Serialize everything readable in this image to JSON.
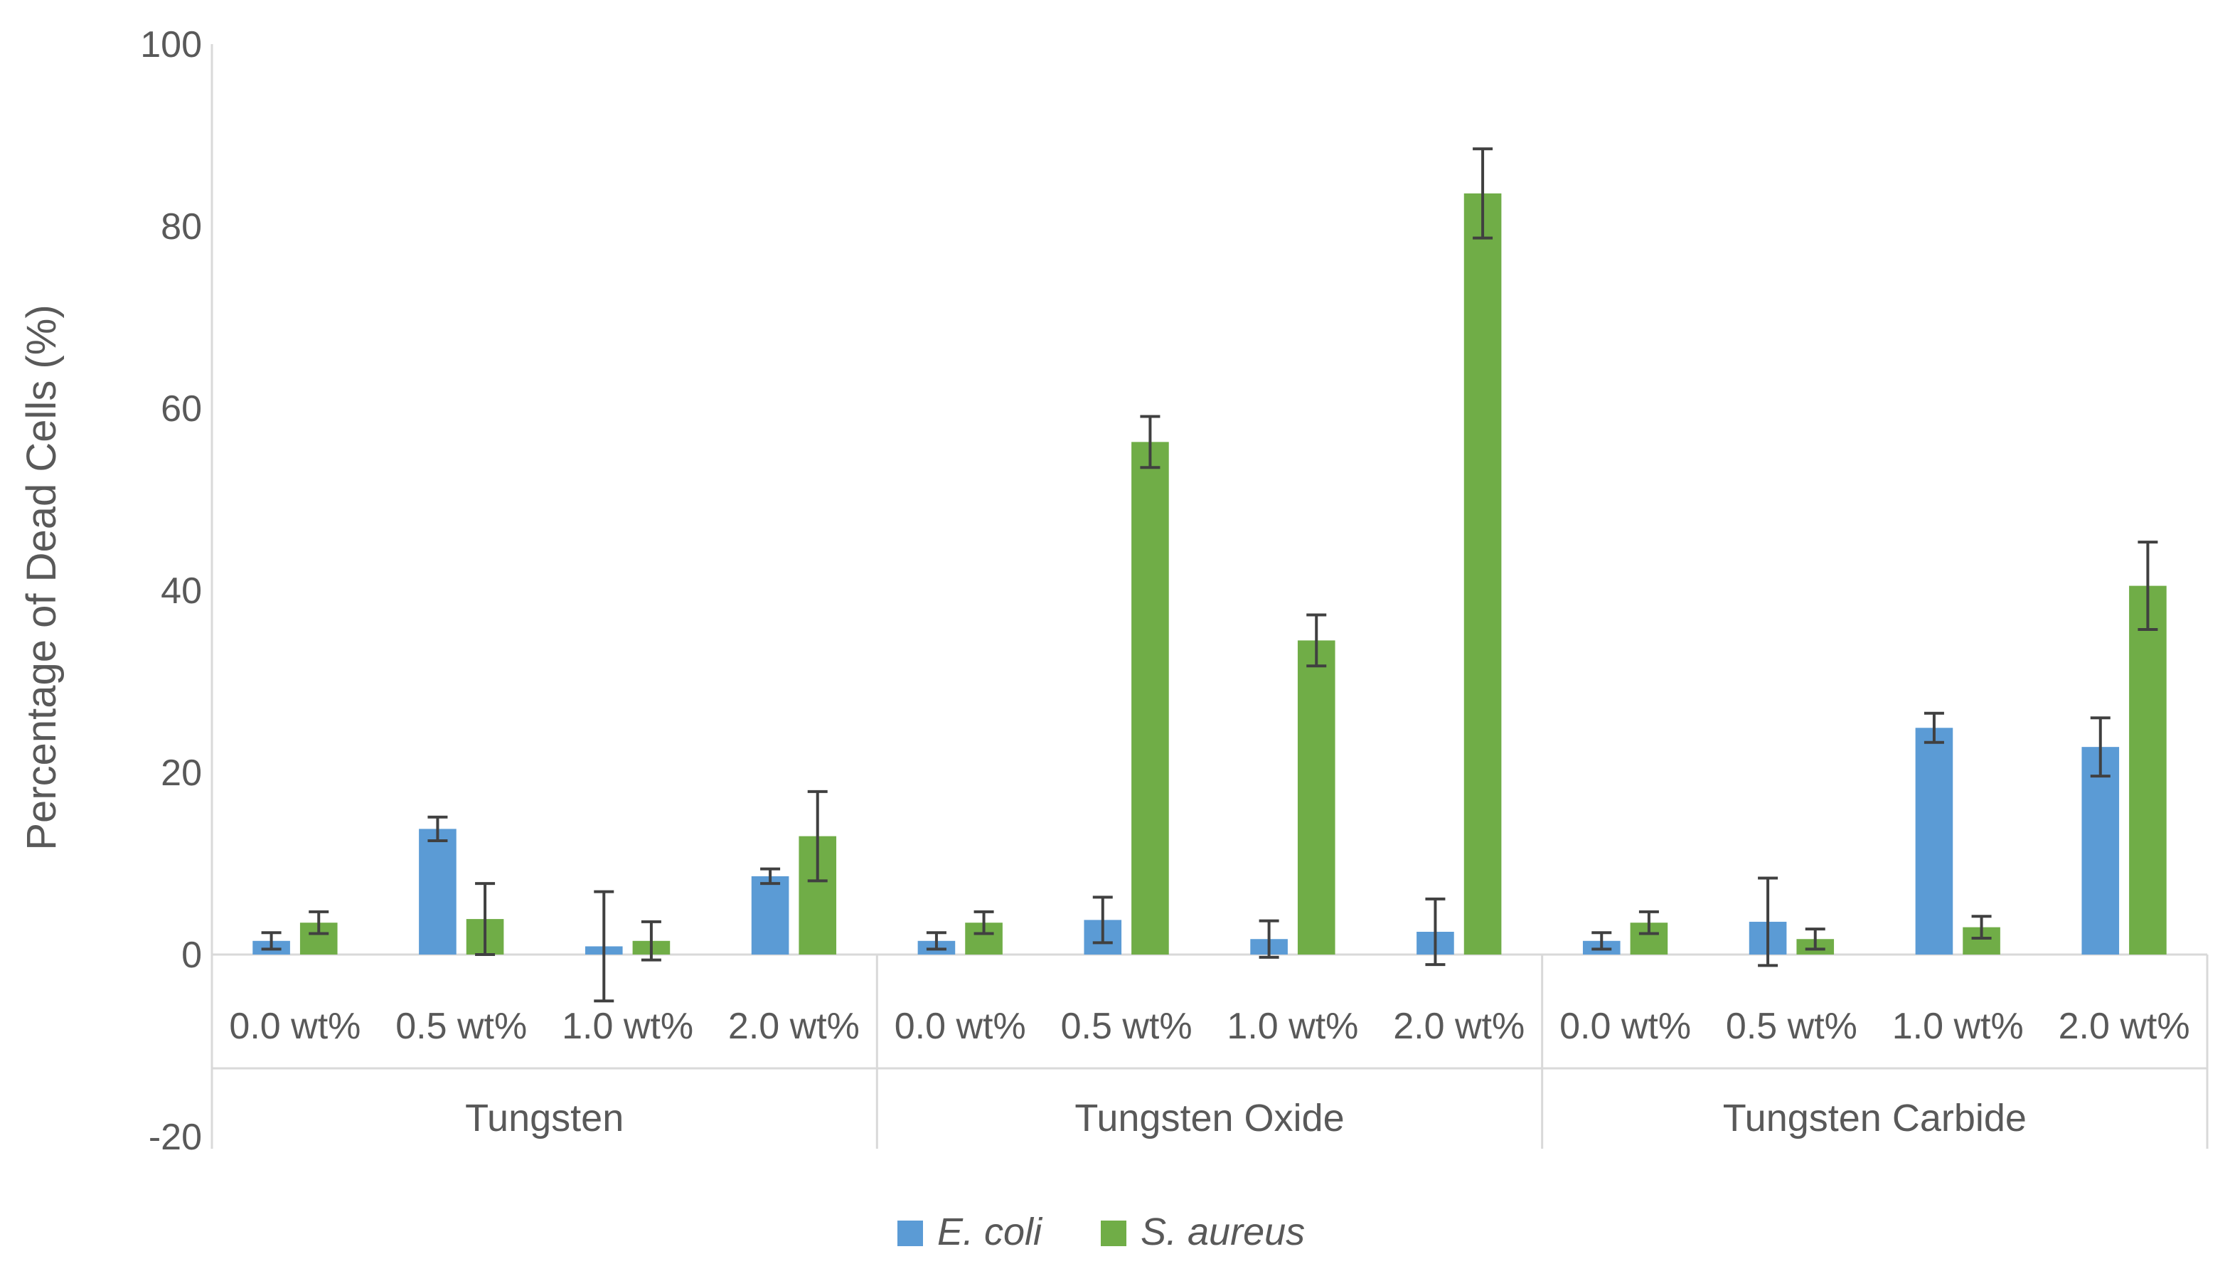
{
  "chart_data": {
    "type": "bar",
    "ylabel": "Percentage of Dead Cells (%)",
    "ylim": [
      -20,
      100
    ],
    "yticks": [
      -20,
      0,
      20,
      40,
      60,
      80,
      100
    ],
    "grid": false,
    "legend_position": "bottom",
    "groups": [
      {
        "label": "Tungsten",
        "categories": [
          "0.0 wt%",
          "0.5 wt%",
          "1.0 wt%",
          "2.0 wt%"
        ]
      },
      {
        "label": "Tungsten Oxide",
        "categories": [
          "0.0 wt%",
          "0.5 wt%",
          "1.0 wt%",
          "2.0 wt%"
        ]
      },
      {
        "label": "Tungsten Carbide",
        "categories": [
          "0.0 wt%",
          "0.5 wt%",
          "1.0 wt%",
          "2.0 wt%"
        ]
      }
    ],
    "series": [
      {
        "name": "E. coli",
        "color": "#5b9bd5",
        "values": [
          1.5,
          13.8,
          0.9,
          8.6,
          1.5,
          3.8,
          1.7,
          2.5,
          1.5,
          3.6,
          24.9,
          22.8
        ],
        "errors": [
          0.9,
          1.3,
          6.0,
          0.8,
          0.9,
          2.5,
          2.0,
          3.6,
          0.9,
          4.8,
          1.6,
          3.2
        ]
      },
      {
        "name": "S. aureus",
        "color": "#70ad47",
        "values": [
          3.5,
          3.9,
          1.5,
          13.0,
          3.5,
          56.3,
          34.5,
          83.6,
          3.5,
          1.7,
          3.0,
          40.5
        ],
        "errors": [
          1.2,
          3.9,
          2.1,
          4.9,
          1.2,
          2.8,
          2.8,
          4.9,
          1.2,
          1.1,
          1.2,
          4.8
        ]
      }
    ]
  }
}
